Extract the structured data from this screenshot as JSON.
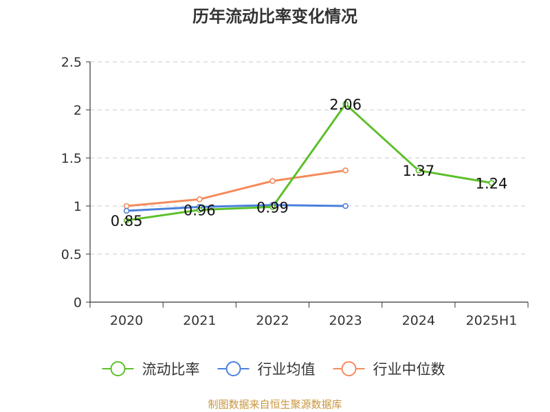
{
  "title": "历年流动比率变化情况",
  "source": "制图数据来自恒生聚源数据库",
  "chart_data": {
    "type": "line",
    "title": "历年流动比率变化情况",
    "xlabel": "",
    "ylabel": "",
    "categories": [
      "2020",
      "2021",
      "2022",
      "2023",
      "2024",
      "2025H1"
    ],
    "ylim": [
      0,
      2.5
    ],
    "yticks": [
      0,
      0.5,
      1,
      1.5,
      2,
      2.5
    ],
    "y_tick_labels": [
      "0",
      "0.5",
      "1",
      "1.5",
      "2",
      "2.5"
    ],
    "grid": true,
    "legend_position": "bottom",
    "series": [
      {
        "name": "流动比率",
        "color": "#5cbf2a",
        "values": [
          0.85,
          0.96,
          0.99,
          2.06,
          1.37,
          1.24
        ],
        "data_labels": [
          "0.85",
          "0.96",
          "0.99",
          "2.06",
          "1.37",
          "1.24"
        ]
      },
      {
        "name": "行业均值",
        "color": "#4a7fdc",
        "values": [
          0.95,
          0.99,
          1.01,
          1.0,
          null,
          null
        ]
      },
      {
        "name": "行业中位数",
        "color": "#f58a5a",
        "values": [
          1.0,
          1.07,
          1.26,
          1.37,
          null,
          null
        ]
      }
    ]
  }
}
